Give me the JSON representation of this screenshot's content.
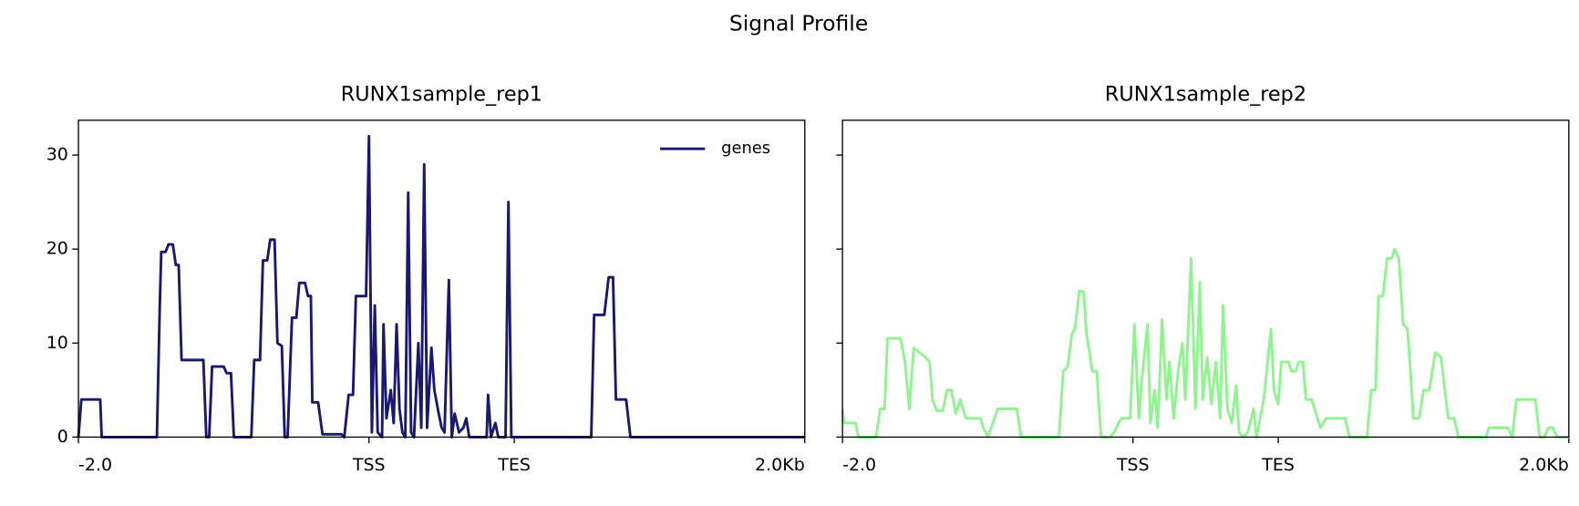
{
  "title": "Signal Profile",
  "chart_data": [
    {
      "type": "line",
      "title": "RUNX1sample_rep1",
      "legend": "upper right",
      "xlim": [
        0,
        500
      ],
      "xticks": [
        {
          "value": 0,
          "label": "-2.0"
        },
        {
          "value": 200,
          "label": "TSS"
        },
        {
          "value": 300,
          "label": "TES"
        },
        {
          "value": 500,
          "label": "2.0Kb"
        }
      ],
      "ylim": [
        0,
        33.7
      ],
      "yticks": [
        0,
        10,
        20,
        30
      ],
      "show_ytick_labels": true,
      "x": [
        0,
        2,
        15,
        16,
        54,
        56,
        57,
        60,
        62,
        65,
        67,
        69,
        71,
        86,
        88,
        90,
        92,
        100,
        102,
        105,
        107,
        119,
        121,
        125,
        127,
        130,
        132,
        135,
        137,
        140,
        142,
        144,
        147,
        150,
        152,
        156,
        158,
        160,
        161,
        165,
        168,
        181,
        183,
        186,
        189,
        191,
        198,
        200,
        202,
        204,
        206,
        209,
        210,
        212,
        215,
        217,
        219,
        221,
        223,
        225,
        227,
        229,
        231,
        234,
        236,
        238,
        240,
        243,
        245,
        248,
        250,
        252,
        255,
        257,
        259,
        262,
        265,
        267,
        269,
        281,
        282,
        284,
        287,
        289,
        294,
        296,
        298,
        353,
        355,
        362,
        365,
        368,
        370,
        377,
        380,
        500
      ],
      "series": [
        {
          "name": "genes",
          "color": "#191970",
          "values": [
            0,
            4,
            4,
            0,
            0,
            14,
            19.7,
            19.7,
            20.5,
            20.5,
            18.3,
            18.3,
            8.2,
            8.2,
            0,
            0,
            7.5,
            7.5,
            6.8,
            6.8,
            0,
            0,
            8.2,
            8.2,
            18.8,
            18.8,
            21,
            21,
            10,
            9.7,
            0,
            0,
            12.7,
            12.7,
            16.4,
            16.4,
            15,
            15,
            3.7,
            3.7,
            0.3,
            0.3,
            0,
            4.5,
            4.5,
            15,
            15,
            32,
            0.5,
            14,
            0.5,
            0,
            12,
            2,
            5,
            1.5,
            12,
            3,
            0.5,
            0,
            26,
            0.5,
            0,
            10,
            1,
            29,
            1,
            9.5,
            5,
            2.5,
            1,
            0.5,
            16.7,
            0,
            2.5,
            0.5,
            1,
            2,
            0,
            0,
            4.5,
            0,
            1.5,
            0,
            0,
            25,
            0,
            0,
            13,
            13,
            17,
            17,
            4,
            4,
            0,
            0
          ]
        }
      ]
    },
    {
      "type": "line",
      "title": "RUNX1sample_rep2",
      "xlim": [
        0,
        500
      ],
      "xticks": [
        {
          "value": 0,
          "label": "-2.0"
        },
        {
          "value": 200,
          "label": "TSS"
        },
        {
          "value": 300,
          "label": "TES"
        },
        {
          "value": 500,
          "label": "2.0Kb"
        }
      ],
      "ylim": [
        0,
        33.7
      ],
      "yticks": [
        0,
        10,
        20,
        30
      ],
      "show_ytick_labels": false,
      "x": [
        0,
        1,
        9,
        11,
        23,
        26,
        29,
        31,
        40,
        43,
        46,
        49,
        53,
        57,
        60,
        62,
        65,
        69,
        72,
        75,
        78,
        81,
        85,
        95,
        97,
        100,
        107,
        120,
        123,
        149,
        152,
        155,
        158,
        160,
        163,
        166,
        168,
        172,
        175,
        178,
        184,
        187,
        190,
        192,
        198,
        201,
        204,
        206,
        210,
        212,
        215,
        217,
        220,
        223,
        225,
        228,
        231,
        234,
        236,
        240,
        243,
        246,
        248,
        251,
        254,
        257,
        260,
        262,
        265,
        268,
        271,
        273,
        276,
        279,
        283,
        285,
        290,
        292,
        295,
        297,
        300,
        302,
        307,
        309,
        312,
        314,
        317,
        319,
        323,
        326,
        329,
        333,
        346,
        349,
        361,
        364,
        367,
        369,
        372,
        375,
        378,
        380,
        383,
        386,
        389,
        391,
        393,
        397,
        400,
        404,
        406,
        408,
        412,
        415,
        417,
        421,
        424,
        443,
        445,
        458,
        461,
        464,
        477,
        480,
        483,
        486,
        489,
        492,
        500
      ],
      "series": [
        {
          "color": "#8ef58e",
          "values": [
            3,
            1.5,
            1.5,
            0,
            0,
            3,
            3,
            10.5,
            10.5,
            8,
            3,
            9.5,
            9,
            8.5,
            8,
            4,
            2.8,
            2.8,
            5,
            5,
            2.5,
            4,
            2,
            2,
            1,
            0,
            3,
            3,
            0,
            0,
            7,
            7.5,
            11,
            11.5,
            15.5,
            15.5,
            11,
            7,
            7,
            0,
            0,
            0.5,
            1.5,
            2,
            2,
            12,
            2,
            6,
            12,
            1.5,
            5,
            1,
            12.5,
            4,
            8,
            2,
            7,
            10,
            4,
            19,
            3,
            16.5,
            4,
            8.5,
            3.5,
            8,
            2,
            14,
            3,
            1.5,
            5.5,
            0.5,
            0,
            0.5,
            3,
            0,
            4,
            7,
            11.5,
            5,
            3.5,
            8,
            8,
            7,
            7,
            8,
            8,
            4,
            4,
            2.5,
            1,
            2,
            2,
            0,
            0,
            5,
            5,
            15,
            15,
            19,
            19,
            20,
            19,
            12,
            11.5,
            7,
            2,
            2,
            5,
            5,
            7,
            9,
            8.5,
            4.5,
            2,
            2,
            0,
            0,
            1,
            1,
            0,
            4,
            4,
            0,
            0,
            1,
            1,
            0,
            0
          ]
        }
      ]
    }
  ]
}
